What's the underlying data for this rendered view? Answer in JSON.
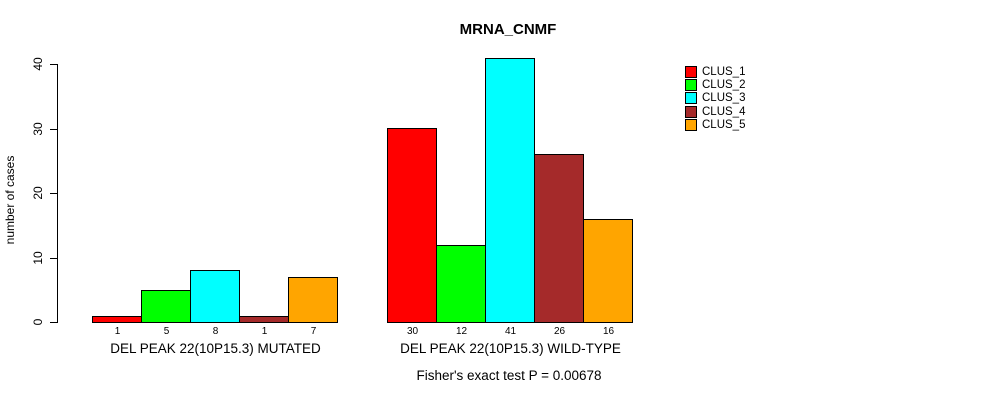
{
  "chart_data": {
    "type": "bar",
    "title": "MRNA_CNMF",
    "subtitle": "Fisher's exact test P = 0.00678",
    "ylabel": "number of cases",
    "xlabel": "",
    "ylim": [
      0,
      41
    ],
    "yticks": [
      0,
      10,
      20,
      30,
      40
    ],
    "grid": false,
    "legend_position": "right",
    "series": [
      {
        "name": "CLUS_1",
        "color": "#FF0000"
      },
      {
        "name": "CLUS_2",
        "color": "#00FF00"
      },
      {
        "name": "CLUS_3",
        "color": "#00FFFF"
      },
      {
        "name": "CLUS_4",
        "color": "#A52A2A"
      },
      {
        "name": "CLUS_5",
        "color": "#FFA500"
      }
    ],
    "groups": [
      {
        "label": "DEL PEAK 22(10P15.3) MUTATED",
        "values": [
          1,
          5,
          8,
          1,
          7
        ]
      },
      {
        "label": "DEL PEAK 22(10P15.3) WILD-TYPE",
        "values": [
          30,
          12,
          41,
          26,
          16
        ]
      }
    ]
  }
}
